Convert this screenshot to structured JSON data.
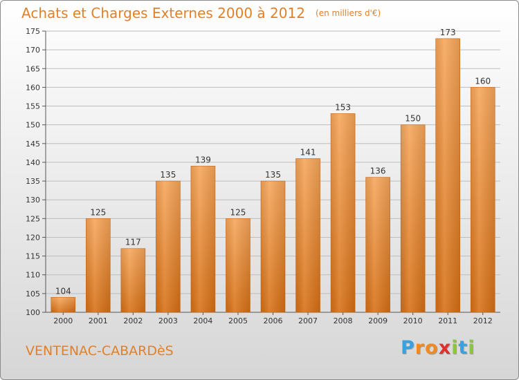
{
  "chart_data": {
    "type": "bar",
    "title": "Achats et Charges Externes 2000 à 2012",
    "subtitle": "(en milliers d'€)",
    "categories": [
      "2000",
      "2001",
      "2002",
      "2003",
      "2004",
      "2005",
      "2006",
      "2007",
      "2008",
      "2009",
      "2010",
      "2011",
      "2012"
    ],
    "values": [
      104,
      125,
      117,
      135,
      139,
      125,
      135,
      141,
      153,
      136,
      150,
      173,
      160
    ],
    "ylim": [
      100,
      175
    ],
    "yticks": [
      100,
      105,
      110,
      115,
      120,
      125,
      130,
      135,
      140,
      145,
      150,
      155,
      160,
      165,
      170,
      175
    ],
    "grid": true,
    "bar_color": "#f0953e",
    "legend": "none"
  },
  "footer": {
    "commune": "VENTENAC-CABARDèS",
    "logo_letters": [
      {
        "char": "P",
        "color": "#3aa0e0"
      },
      {
        "char": "r",
        "color": "#f08a20"
      },
      {
        "char": "o",
        "color": "#f08a20"
      },
      {
        "char": "x",
        "color": "#e0302a"
      },
      {
        "char": "i",
        "color": "#8cc63f"
      },
      {
        "char": "t",
        "color": "#3aa0e0"
      },
      {
        "char": "i",
        "color": "#8cc63f"
      }
    ]
  }
}
